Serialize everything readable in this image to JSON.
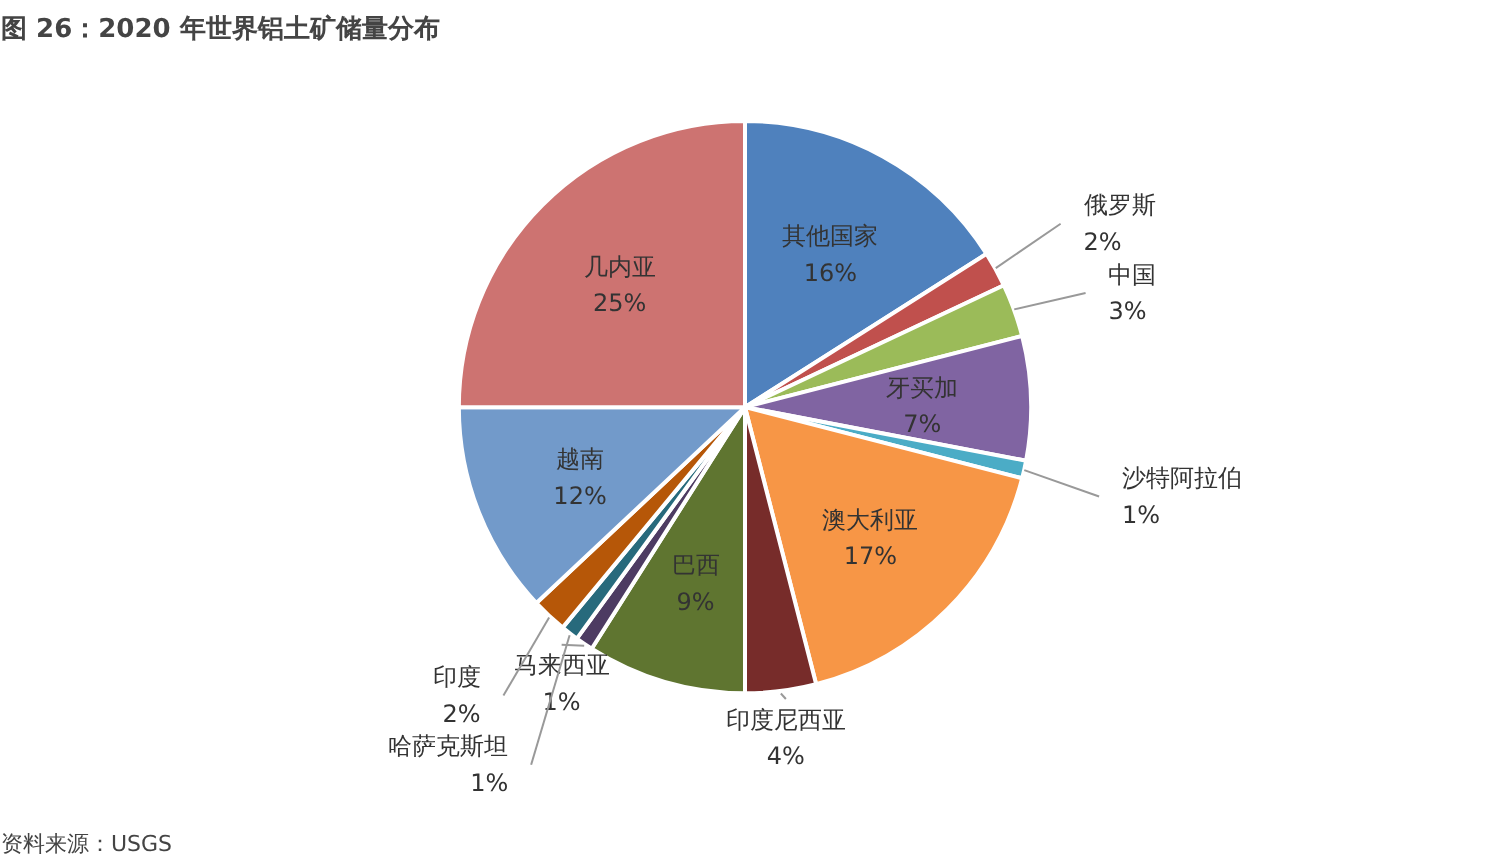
{
  "chart_data": {
    "type": "pie",
    "title": "图 26：2020 年世界铝土矿储量分布",
    "categories": [
      "其他国家",
      "俄罗斯",
      "中国",
      "牙买加",
      "沙特阿拉伯",
      "澳大利亚",
      "印度尼西亚",
      "巴西",
      "马来西亚",
      "哈萨克斯坦",
      "印度",
      "越南",
      "几内亚"
    ],
    "values": [
      16,
      2,
      3,
      7,
      1,
      17,
      4,
      9,
      1,
      1,
      2,
      12,
      25
    ],
    "value_labels": [
      "16%",
      "2%",
      "3%",
      "7%",
      "1%",
      "17%",
      "4%",
      "9%",
      "1%",
      "1%",
      "2%",
      "12%",
      "25%"
    ],
    "colors": [
      "#4f81bd",
      "#c0504d",
      "#9bbb59",
      "#8064a2",
      "#4bacc6",
      "#f79646",
      "#772c2a",
      "#5f7530",
      "#4d3b62",
      "#276a7c",
      "#b65708",
      "#729aca",
      "#cd7371"
    ],
    "annotations": [
      "资料来源：USGS"
    ]
  }
}
